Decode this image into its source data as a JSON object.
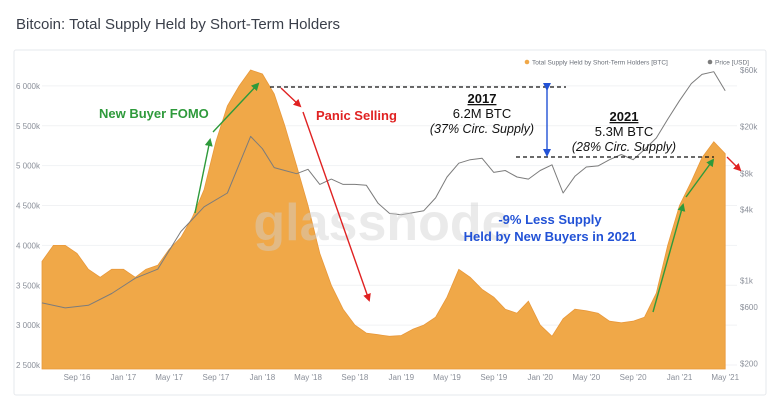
{
  "page": {
    "title": "Bitcoin: Total Supply Held by Short-Term Holders"
  },
  "colors": {
    "supply": "#f0a848",
    "price": "#7c7c7c",
    "green": "#2e9a3b",
    "red": "#e02222",
    "blue": "#2252d6",
    "black": "#111111"
  },
  "watermark": "glassnode",
  "chart_data": {
    "type": "area",
    "title": "",
    "x_ticks": [
      "Sep '16",
      "Jan '17",
      "May '17",
      "Sep '17",
      "Jan '18",
      "May '18",
      "Sep '18",
      "Jan '19",
      "May '19",
      "Sep '19",
      "Jan '20",
      "May '20",
      "Sep '20",
      "Jan '21",
      "May '21"
    ],
    "y_left_ticks": [
      2500000,
      3000000,
      3500000,
      4000000,
      4500000,
      5000000,
      5500000,
      6000000
    ],
    "y_left_labels": [
      "2 500k",
      "3 000k",
      "3 500k",
      "4 000k",
      "4 500k",
      "5 000k",
      "5 500k",
      "6 000k"
    ],
    "y_left_range": [
      2450000,
      6300000
    ],
    "y_right_scale": "log",
    "y_right_ticks": [
      200,
      600,
      1000,
      4000,
      8000,
      20000,
      60000
    ],
    "y_right_labels": [
      "$200",
      "$600",
      "$1k",
      "$4k",
      "$8k",
      "$20k",
      "$60k"
    ],
    "y_right_range": [
      180,
      70000
    ],
    "series": [
      {
        "name": "Total Supply Held by Short-Term Holders [BTC]",
        "axis": "left",
        "x": [
          "2016-06-01",
          "2016-07-01",
          "2016-08-01",
          "2016-09-01",
          "2016-10-01",
          "2016-11-01",
          "2016-12-01",
          "2017-01-01",
          "2017-02-01",
          "2017-03-01",
          "2017-04-01",
          "2017-05-01",
          "2017-06-01",
          "2017-07-01",
          "2017-08-01",
          "2017-09-01",
          "2017-10-01",
          "2017-11-01",
          "2017-12-01",
          "2018-01-01",
          "2018-02-01",
          "2018-03-01",
          "2018-04-01",
          "2018-05-01",
          "2018-06-01",
          "2018-07-01",
          "2018-08-01",
          "2018-09-01",
          "2018-10-01",
          "2018-11-01",
          "2018-12-01",
          "2019-01-01",
          "2019-02-01",
          "2019-03-01",
          "2019-04-01",
          "2019-05-01",
          "2019-06-01",
          "2019-07-01",
          "2019-08-01",
          "2019-09-01",
          "2019-10-01",
          "2019-11-01",
          "2019-12-01",
          "2020-01-01",
          "2020-02-01",
          "2020-03-01",
          "2020-04-01",
          "2020-05-01",
          "2020-06-01",
          "2020-07-01",
          "2020-08-01",
          "2020-09-01",
          "2020-10-01",
          "2020-11-01",
          "2020-12-01",
          "2021-01-01",
          "2021-02-01",
          "2021-03-01",
          "2021-04-01",
          "2021-05-01"
        ],
        "values": [
          3800000,
          4000000,
          4000000,
          3900000,
          3700000,
          3600000,
          3700000,
          3700000,
          3600000,
          3700000,
          3750000,
          3950000,
          4100000,
          4350000,
          4700000,
          5300000,
          5750000,
          6000000,
          6200000,
          6150000,
          5900000,
          5500000,
          5000000,
          4500000,
          3900000,
          3500000,
          3200000,
          3000000,
          2900000,
          2880000,
          2860000,
          2870000,
          2950000,
          3000000,
          3100000,
          3350000,
          3700000,
          3600000,
          3450000,
          3350000,
          3200000,
          3150000,
          3300000,
          3000000,
          2860000,
          3080000,
          3200000,
          3180000,
          3150000,
          3050000,
          3030000,
          3050000,
          3100000,
          3400000,
          4000000,
          4500000,
          4800000,
          5100000,
          5300000,
          5150000
        ]
      },
      {
        "name": "Price [USD]",
        "axis": "right",
        "x": [
          "2016-06-01",
          "2016-08-01",
          "2016-10-01",
          "2016-12-01",
          "2017-02-01",
          "2017-04-01",
          "2017-06-01",
          "2017-08-01",
          "2017-10-01",
          "2017-12-01",
          "2018-01-01",
          "2018-02-01",
          "2018-03-01",
          "2018-04-01",
          "2018-05-01",
          "2018-06-01",
          "2018-07-01",
          "2018-08-01",
          "2018-09-01",
          "2018-10-01",
          "2018-11-01",
          "2018-12-01",
          "2019-01-01",
          "2019-03-01",
          "2019-04-01",
          "2019-05-01",
          "2019-06-01",
          "2019-07-01",
          "2019-08-01",
          "2019-09-01",
          "2019-10-01",
          "2019-11-01",
          "2019-12-01",
          "2020-01-01",
          "2020-02-01",
          "2020-03-01",
          "2020-04-01",
          "2020-05-01",
          "2020-06-01",
          "2020-07-01",
          "2020-08-01",
          "2020-09-01",
          "2020-10-01",
          "2020-11-01",
          "2020-12-01",
          "2021-01-01",
          "2021-02-01",
          "2021-03-01",
          "2021-04-01",
          "2021-05-01"
        ],
        "values": [
          650,
          590,
          620,
          780,
          1050,
          1250,
          2600,
          4200,
          5500,
          16500,
          13000,
          9000,
          8500,
          8000,
          8700,
          6500,
          7200,
          6500,
          6500,
          6400,
          4500,
          3700,
          3600,
          3900,
          5000,
          7500,
          9800,
          10500,
          10800,
          8200,
          8500,
          7500,
          7200,
          8500,
          9500,
          5500,
          7600,
          9100,
          9300,
          10500,
          11600,
          10500,
          12800,
          16000,
          23000,
          33000,
          46000,
          55000,
          58000,
          40000
        ]
      }
    ],
    "annotations": {
      "fomo": "New Buyer FOMO",
      "panic": "Panic Selling",
      "peak2017_year": "2017",
      "peak2017_value": "6.2M BTC",
      "peak2017_pct": "(37% Circ. Supply)",
      "peak2021_year": "2021",
      "peak2021_value": "5.3M BTC",
      "peak2021_pct": "(28% Circ. Supply)",
      "less_supply_1": "-9% Less Supply",
      "less_supply_2": "Held by New Buyers in 2021"
    },
    "legend": {
      "position": "top-right"
    }
  }
}
